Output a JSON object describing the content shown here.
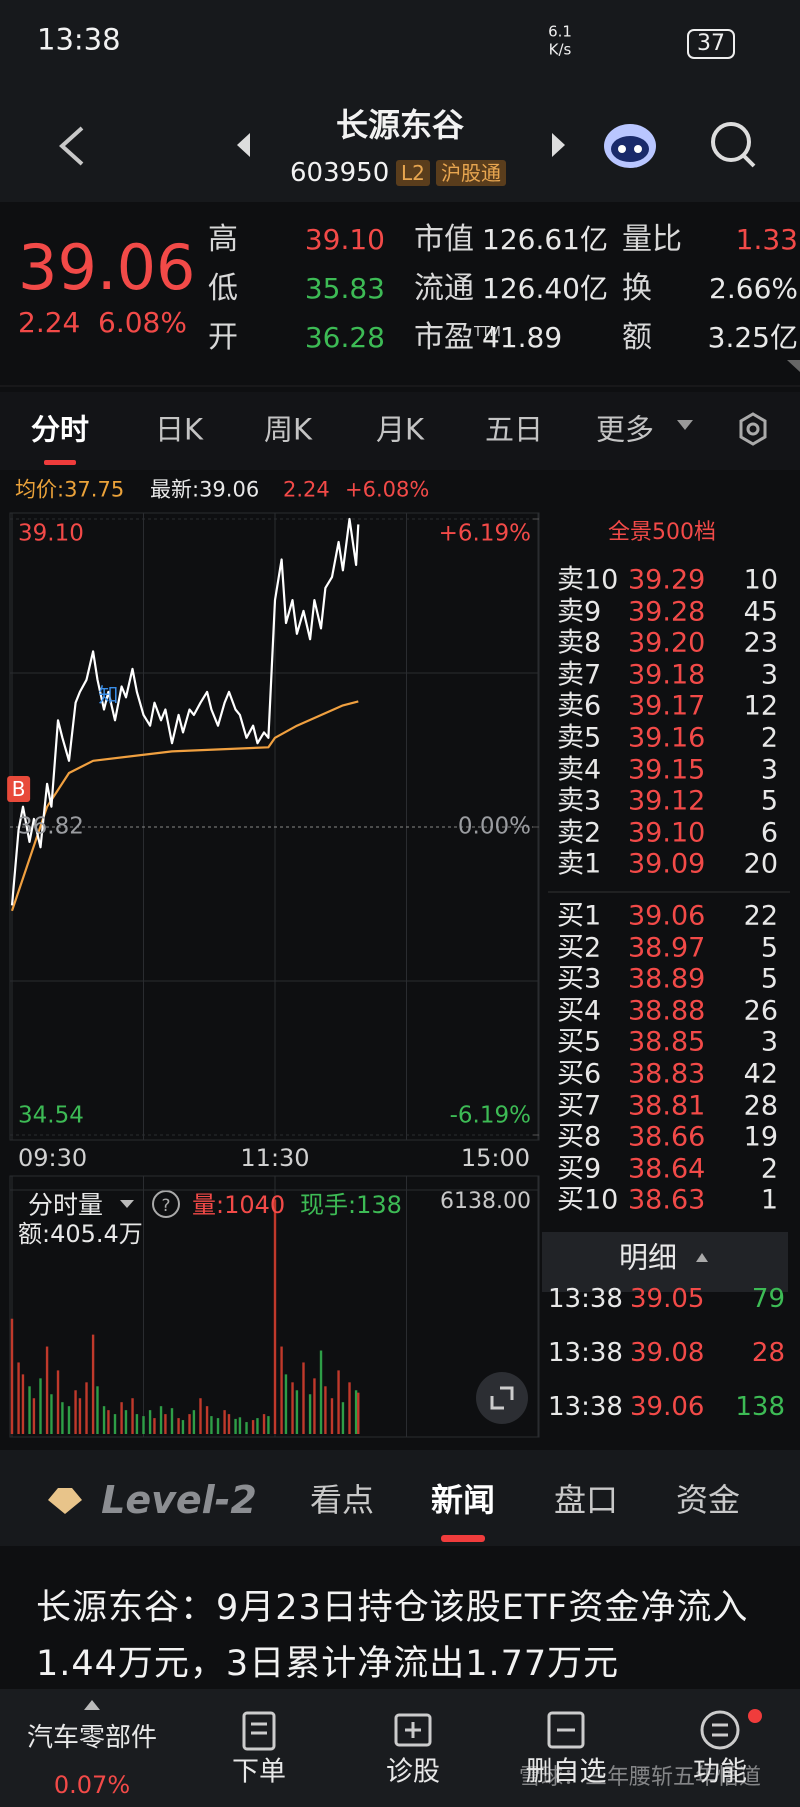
{
  "status_bar": {
    "time": "13:38",
    "net_speed": "6.1",
    "net_unit": "K/s",
    "battery": "37"
  },
  "header": {
    "name": "长源东谷",
    "code": "603950",
    "badges": [
      "L2",
      "沪股通"
    ]
  },
  "quote": {
    "price": "39.06",
    "change": "2.24",
    "change_pct": "6.08%",
    "color": "#f24a48",
    "columns": [
      [
        {
          "label": "高",
          "value": "39.10",
          "color": "#f24a48"
        },
        {
          "label": "低",
          "value": "35.83",
          "color": "#3dbb55"
        },
        {
          "label": "开",
          "value": "36.28",
          "color": "#3dbb55"
        }
      ],
      [
        {
          "label": "市值",
          "value": "126.61亿"
        },
        {
          "label": "流通",
          "value": "126.40亿"
        },
        {
          "label": "市盈",
          "label_sup": "TTM",
          "value": "41.89"
        }
      ],
      [
        {
          "label": "量比",
          "value": "1.33",
          "color": "#f24a48"
        },
        {
          "label": "换",
          "value": "2.66%"
        },
        {
          "label": "额",
          "value": "3.25亿"
        }
      ]
    ]
  },
  "tabs": {
    "items": [
      "分时",
      "日K",
      "周K",
      "月K",
      "五日",
      "更多"
    ],
    "active": 0
  },
  "info_bar": [
    {
      "text": "均价:37.75",
      "color": "#eaa23a"
    },
    {
      "text": "最新:39.06",
      "color": "#e8e8e8"
    },
    {
      "text": "2.24",
      "color": "#f24a48"
    },
    {
      "text": "+6.08%",
      "color": "#f24a48"
    }
  ],
  "chart_data": [
    {
      "type": "line",
      "x": [
        0,
        3,
        5,
        8,
        10,
        13,
        16,
        18,
        21,
        23,
        26,
        29,
        31,
        34,
        37,
        39,
        42,
        44,
        47,
        50,
        52,
        55,
        57,
        60,
        63,
        65,
        68,
        70,
        73,
        76,
        78,
        81,
        83,
        86,
        89,
        91,
        94,
        97,
        99,
        102,
        104,
        107,
        110,
        112,
        115,
        117,
        120,
        123,
        125,
        128,
        130,
        133,
        136,
        138,
        141,
        143,
        146,
        149,
        151,
        154,
        157,
        158
      ],
      "series": [
        {
          "color": "#ffffff",
          "values": [
            36.24,
            36.8,
            36.97,
            36.71,
            36.88,
            36.67,
            37.14,
            36.97,
            37.61,
            37.48,
            37.31,
            37.74,
            37.82,
            37.91,
            38.12,
            37.91,
            37.69,
            37.82,
            37.61,
            37.86,
            37.78,
            37.99,
            37.82,
            37.65,
            37.57,
            37.74,
            37.61,
            37.69,
            37.44,
            37.65,
            37.52,
            37.69,
            37.65,
            37.74,
            37.82,
            37.69,
            37.57,
            37.74,
            37.82,
            37.69,
            37.65,
            37.48,
            37.57,
            37.44,
            37.52,
            37.48,
            38.5,
            38.8,
            38.33,
            38.5,
            38.25,
            38.42,
            38.21,
            38.5,
            38.29,
            38.59,
            38.67,
            38.93,
            38.72,
            39.1,
            38.76,
            39.06
          ]
        },
        {
          "color": "#f0a040",
          "x": [
            0,
            16,
            26,
            37,
            73,
            117,
            120,
            130,
            151,
            158
          ],
          "values": [
            36.2,
            36.97,
            37.22,
            37.31,
            37.38,
            37.41,
            37.48,
            37.57,
            37.72,
            37.75
          ]
        }
      ],
      "xlim": [
        0,
        240
      ],
      "xticks": [
        {
          "value": 0,
          "label": "09:30"
        },
        {
          "value": 120,
          "label": "11:30"
        },
        {
          "value": 240,
          "label": "15:00"
        }
      ],
      "xgrid": [
        60,
        180
      ],
      "ylim": [
        34.54,
        39.1
      ],
      "yticks": [
        {
          "value": 39.1,
          "label": "39.10"
        },
        {
          "value": 36.82,
          "label": "36.82"
        },
        {
          "value": 34.54,
          "label": "34.54"
        }
      ],
      "ygrid": [
        37.96,
        35.68
      ],
      "y2lim": [
        -6.19,
        6.19
      ],
      "y2ticks": [
        {
          "value": 6.19,
          "label": "+6.19%"
        },
        {
          "value": 0,
          "label": "0.00%"
        },
        {
          "value": -6.19,
          "label": "-6.19%"
        }
      ],
      "annotations": [
        {
          "text": "B",
          "x": 3,
          "y": 37.1,
          "color": "#e84a3a"
        },
        {
          "text": "知",
          "x": 44,
          "y": 37.8,
          "color": "#3a8ee8"
        }
      ]
    },
    {
      "type": "bar",
      "title": "分时量",
      "x": [
        0,
        3,
        5,
        8,
        10,
        13,
        16,
        18,
        21,
        23,
        26,
        29,
        31,
        34,
        37,
        39,
        42,
        44,
        47,
        50,
        52,
        55,
        57,
        60,
        63,
        65,
        68,
        70,
        73,
        76,
        78,
        81,
        83,
        86,
        89,
        91,
        94,
        97,
        99,
        102,
        104,
        107,
        110,
        112,
        115,
        117,
        120,
        123,
        125,
        128,
        130,
        133,
        136,
        138,
        141,
        143,
        146,
        149,
        151,
        154,
        157,
        158
      ],
      "values": [
        2900,
        1800,
        1500,
        1200,
        900,
        1400,
        2200,
        1000,
        1600,
        800,
        700,
        1100,
        900,
        1300,
        2500,
        1200,
        700,
        600,
        500,
        800,
        600,
        900,
        500,
        450,
        600,
        400,
        700,
        500,
        650,
        400,
        350,
        500,
        600,
        900,
        700,
        450,
        400,
        600,
        500,
        380,
        420,
        300,
        350,
        400,
        500,
        450,
        5900,
        2200,
        1500,
        1300,
        1100,
        1800,
        1000,
        1400,
        2100,
        1200,
        900,
        1600,
        800,
        1300,
        1100,
        1040
      ],
      "xlim": [
        0,
        240
      ],
      "ylim": [
        0,
        6138
      ],
      "yticks": [
        {
          "value": 6138,
          "label": "6138.00"
        }
      ],
      "annotations": [
        {
          "text": "量:1040",
          "color": "#f24a48"
        },
        {
          "text": "现手:138",
          "color": "#3dbb55"
        },
        {
          "text": "额:405.4万",
          "color": "#e8e8e8"
        }
      ]
    }
  ],
  "order_book": {
    "title": "全景500档",
    "asks": [
      {
        "label": "卖10",
        "price": "39.29",
        "volume": "10"
      },
      {
        "label": "卖9",
        "price": "39.28",
        "volume": "45"
      },
      {
        "label": "卖8",
        "price": "39.20",
        "volume": "23"
      },
      {
        "label": "卖7",
        "price": "39.18",
        "volume": "3"
      },
      {
        "label": "卖6",
        "price": "39.17",
        "volume": "12"
      },
      {
        "label": "卖5",
        "price": "39.16",
        "volume": "2"
      },
      {
        "label": "卖4",
        "price": "39.15",
        "volume": "3"
      },
      {
        "label": "卖3",
        "price": "39.12",
        "volume": "5"
      },
      {
        "label": "卖2",
        "price": "39.10",
        "volume": "6"
      },
      {
        "label": "卖1",
        "price": "39.09",
        "volume": "20"
      }
    ],
    "bids": [
      {
        "label": "买1",
        "price": "39.06",
        "volume": "22"
      },
      {
        "label": "买2",
        "price": "38.97",
        "volume": "5"
      },
      {
        "label": "买3",
        "price": "38.89",
        "volume": "5"
      },
      {
        "label": "买4",
        "price": "38.88",
        "volume": "26"
      },
      {
        "label": "买5",
        "price": "38.85",
        "volume": "3"
      },
      {
        "label": "买6",
        "price": "38.83",
        "volume": "42"
      },
      {
        "label": "买7",
        "price": "38.81",
        "volume": "28"
      },
      {
        "label": "买8",
        "price": "38.66",
        "volume": "19"
      },
      {
        "label": "买9",
        "price": "38.64",
        "volume": "2"
      },
      {
        "label": "买10",
        "price": "38.63",
        "volume": "1"
      }
    ]
  },
  "trade_detail": {
    "title": "明细",
    "rows": [
      {
        "time": "13:38",
        "price": "39.05",
        "volume": "79",
        "color": "#3dbb55"
      },
      {
        "time": "13:38",
        "price": "39.08",
        "volume": "28",
        "color": "#f24a48"
      },
      {
        "time": "13:38",
        "price": "39.06",
        "volume": "138",
        "color": "#3dbb55"
      }
    ]
  },
  "bottom_tabs": {
    "items": [
      "Level-2",
      "看点",
      "新闻",
      "盘口",
      "资金"
    ],
    "active": 2
  },
  "news": {
    "headline": "长源东谷：9月23日持仓该股ETF资金净流入1.44万元，3日累计净流出1.77万元"
  },
  "bottom_nav": {
    "sector": "汽车零部件",
    "sector_change": "0.07%",
    "items": [
      "下单",
      "诊股",
      "删自选",
      "功能"
    ]
  },
  "watermark": "雪球：三年腰斩五年悟道"
}
